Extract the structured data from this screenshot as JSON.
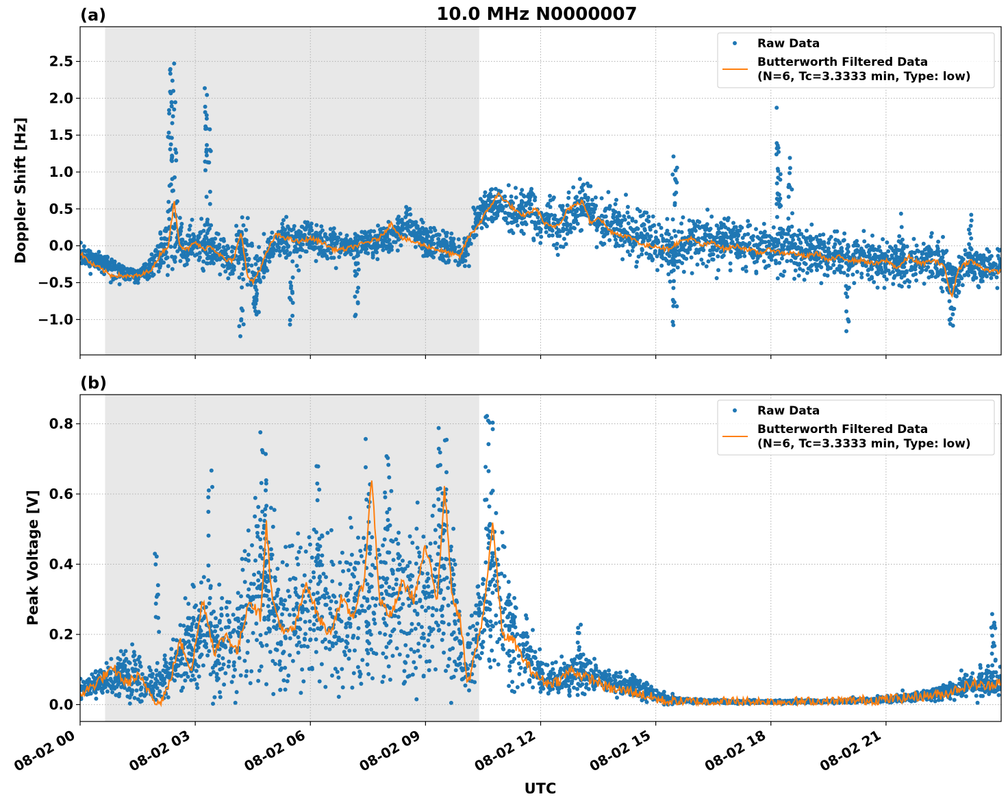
{
  "figure": {
    "title": "10.0 MHz N0000007",
    "xlabel": "UTC",
    "shading_color": "#e8e8e8",
    "raw_color": "#1f77b4",
    "filtered_color": "#ff7f0e"
  },
  "chart_data": [
    {
      "panel": "(a)",
      "type": "scatter",
      "title": "10.0 MHz N0000007",
      "ylabel": "Doppler Shift [Hz]",
      "xlabel": "",
      "xlim": [
        0,
        24
      ],
      "ylim": [
        -1.48,
        2.97
      ],
      "yticks": [
        -1.0,
        -0.5,
        0.0,
        0.5,
        1.0,
        1.5,
        2.0,
        2.5
      ],
      "ytick_labels": [
        "−1.0",
        "−0.5",
        "0.0",
        "0.5",
        "1.0",
        "1.5",
        "2.0",
        "2.5"
      ],
      "xticks": [
        0,
        3,
        6,
        9,
        12,
        15,
        18,
        21
      ],
      "grid": true,
      "legend_position": "upper-right",
      "shaded_span_hours": [
        0.65,
        10.4
      ],
      "series": [
        {
          "name": "Raw Data",
          "kind": "points",
          "color": "#1f77b4",
          "x": [
            0,
            0.5,
            1,
            1.5,
            1.8,
            2,
            2.25,
            2.4,
            2.5,
            2.75,
            3,
            3.25,
            3.5,
            3.75,
            4,
            4.25,
            4.5,
            4.75,
            5,
            5.5,
            6,
            6.5,
            7,
            7.5,
            8,
            8.5,
            9,
            9.5,
            10,
            10.25,
            10.5,
            10.75,
            11,
            11.25,
            11.5,
            11.75,
            12,
            12.25,
            12.5,
            12.75,
            13,
            13.25,
            13.5,
            14,
            14.5,
            15,
            15.5,
            16,
            16.5,
            17,
            17.5,
            18,
            18.5,
            19,
            19.5,
            20,
            20.5,
            21,
            21.5,
            22,
            22.5,
            22.75,
            23,
            23.5,
            24
          ],
          "y": [
            -0.12,
            -0.2,
            -0.35,
            -0.42,
            -0.3,
            -0.18,
            0.0,
            0.35,
            0.1,
            -0.08,
            0.05,
            0.0,
            -0.05,
            -0.15,
            -0.25,
            0.15,
            -0.45,
            -0.3,
            0.05,
            0.05,
            0.1,
            -0.02,
            -0.02,
            0.02,
            0.1,
            0.3,
            0.05,
            -0.02,
            -0.15,
            0.25,
            0.45,
            0.6,
            0.5,
            0.45,
            0.48,
            0.5,
            0.35,
            0.3,
            0.25,
            0.4,
            0.5,
            0.55,
            0.3,
            0.25,
            0.12,
            0.05,
            -0.05,
            0.1,
            0.05,
            0.1,
            -0.02,
            -0.05,
            -0.05,
            -0.08,
            -0.12,
            -0.15,
            -0.2,
            -0.2,
            -0.25,
            -0.22,
            -0.25,
            -0.55,
            -0.25,
            -0.28,
            -0.32
          ],
          "spread": [
            0.12,
            0.13,
            0.12,
            0.1,
            0.15,
            0.2,
            0.35,
            0.9,
            0.35,
            0.3,
            0.3,
            0.35,
            0.3,
            0.3,
            0.35,
            0.3,
            0.35,
            0.3,
            0.28,
            0.25,
            0.22,
            0.22,
            0.2,
            0.2,
            0.2,
            0.25,
            0.2,
            0.2,
            0.2,
            0.25,
            0.25,
            0.25,
            0.25,
            0.28,
            0.3,
            0.3,
            0.3,
            0.3,
            0.3,
            0.32,
            0.33,
            0.33,
            0.3,
            0.28,
            0.28,
            0.3,
            0.32,
            0.3,
            0.3,
            0.3,
            0.3,
            0.32,
            0.33,
            0.32,
            0.3,
            0.3,
            0.28,
            0.28,
            0.28,
            0.28,
            0.28,
            0.3,
            0.28,
            0.25,
            0.25
          ],
          "spikes": [
            [
              2.4,
              2.75
            ],
            [
              2.45,
              2.6
            ],
            [
              2.35,
              2.2
            ],
            [
              3.3,
              2.25
            ],
            [
              3.35,
              1.9
            ],
            [
              4.2,
              -1.25
            ],
            [
              4.6,
              -1.1
            ],
            [
              5.5,
              -1.1
            ],
            [
              7.2,
              -1.0
            ],
            [
              15.5,
              1.27
            ],
            [
              15.5,
              -1.1
            ],
            [
              18.2,
              1.9
            ],
            [
              18.2,
              1.5
            ],
            [
              18.5,
              1.2
            ],
            [
              20.0,
              -1.27
            ],
            [
              22.7,
              -1.2
            ],
            [
              21.4,
              0.6
            ],
            [
              23.2,
              0.45
            ]
          ]
        },
        {
          "name": "Butterworth Filtered Data\n(N=6, Tc=3.3333 min, Type: low)",
          "kind": "line",
          "color": "#ff7f0e",
          "x": [
            0,
            0.3,
            0.5,
            0.8,
            1,
            1.3,
            1.6,
            1.9,
            2.1,
            2.3,
            2.45,
            2.6,
            2.8,
            3,
            3.2,
            3.4,
            3.6,
            3.8,
            4,
            4.2,
            4.35,
            4.5,
            4.7,
            4.9,
            5.1,
            5.4,
            5.7,
            6,
            6.3,
            6.6,
            6.9,
            7.2,
            7.5,
            7.8,
            8.1,
            8.4,
            8.7,
            9,
            9.3,
            9.6,
            9.9,
            10.1,
            10.4,
            10.7,
            10.9,
            11.1,
            11.3,
            11.5,
            11.7,
            11.9,
            12.1,
            12.3,
            12.5,
            12.7,
            12.9,
            13.1,
            13.3,
            13.5,
            13.8,
            14.1,
            14.4,
            14.7,
            15,
            15.3,
            15.6,
            15.9,
            16.2,
            16.5,
            16.8,
            17.1,
            17.4,
            17.7,
            18,
            18.3,
            18.6,
            18.9,
            19.2,
            19.5,
            19.8,
            20.1,
            20.4,
            20.7,
            21,
            21.3,
            21.6,
            21.9,
            22.2,
            22.5,
            22.7,
            22.9,
            23.2,
            23.5,
            23.8,
            24
          ],
          "y": [
            -0.1,
            -0.25,
            -0.3,
            -0.4,
            -0.4,
            -0.42,
            -0.4,
            -0.3,
            -0.1,
            0.0,
            0.6,
            0.0,
            -0.05,
            0.05,
            -0.05,
            0.0,
            -0.1,
            -0.2,
            -0.2,
            0.2,
            -0.4,
            -0.5,
            -0.3,
            -0.05,
            0.15,
            0.1,
            0.05,
            0.1,
            0.05,
            -0.05,
            -0.05,
            0.0,
            0.05,
            0.1,
            0.3,
            0.1,
            0.05,
            0.0,
            -0.05,
            -0.1,
            -0.15,
            0.1,
            0.3,
            0.55,
            0.7,
            0.6,
            0.5,
            0.4,
            0.45,
            0.5,
            0.3,
            0.25,
            0.3,
            0.5,
            0.55,
            0.6,
            0.3,
            0.4,
            0.2,
            0.15,
            0.1,
            0.0,
            0.0,
            -0.05,
            0.05,
            0.1,
            0.0,
            0.05,
            -0.05,
            0.0,
            -0.05,
            -0.1,
            -0.05,
            -0.1,
            -0.1,
            -0.15,
            -0.1,
            -0.2,
            -0.15,
            -0.2,
            -0.2,
            -0.25,
            -0.2,
            -0.3,
            -0.15,
            -0.25,
            -0.2,
            -0.25,
            -0.7,
            -0.3,
            -0.2,
            -0.3,
            -0.35,
            -0.35
          ]
        }
      ]
    },
    {
      "panel": "(b)",
      "type": "scatter",
      "title": "",
      "ylabel": "Peak Voltage [V]",
      "xlabel": "UTC",
      "xlim": [
        0,
        24
      ],
      "ylim": [
        -0.048,
        0.883
      ],
      "yticks": [
        0.0,
        0.2,
        0.4,
        0.6,
        0.8
      ],
      "ytick_labels": [
        "0.0",
        "0.2",
        "0.4",
        "0.6",
        "0.8"
      ],
      "xticks": [
        0,
        3,
        6,
        9,
        12,
        15,
        18,
        21
      ],
      "xtick_labels": [
        "08-02 00",
        "08-02 03",
        "08-02 06",
        "08-02 09",
        "08-02 12",
        "08-02 15",
        "08-02 18",
        "08-02 21"
      ],
      "grid": true,
      "legend_position": "upper-right",
      "shaded_span_hours": [
        0.65,
        10.4
      ],
      "series": [
        {
          "name": "Raw Data",
          "kind": "points",
          "color": "#1f77b4",
          "x": [
            0,
            0.5,
            1,
            1.3,
            1.6,
            2,
            2.3,
            2.7,
            3,
            3.3,
            3.6,
            4,
            4.3,
            4.6,
            4.9,
            5.2,
            5.5,
            5.8,
            6.1,
            6.4,
            6.7,
            7,
            7.3,
            7.6,
            7.9,
            8.2,
            8.5,
            8.8,
            9.1,
            9.4,
            9.7,
            10,
            10.3,
            10.6,
            10.9,
            11.2,
            11.5,
            11.8,
            12.1,
            12.4,
            12.7,
            13,
            13.3,
            13.6,
            14,
            14.4,
            14.8,
            15.2,
            15.6,
            16,
            17,
            18,
            19,
            20,
            21,
            21.5,
            22,
            22.5,
            23,
            23.5,
            24
          ],
          "y": [
            0.05,
            0.06,
            0.07,
            0.1,
            0.06,
            0.05,
            0.08,
            0.15,
            0.18,
            0.2,
            0.17,
            0.2,
            0.25,
            0.3,
            0.35,
            0.2,
            0.3,
            0.25,
            0.28,
            0.3,
            0.22,
            0.28,
            0.3,
            0.32,
            0.28,
            0.3,
            0.27,
            0.3,
            0.32,
            0.35,
            0.3,
            0.08,
            0.2,
            0.28,
            0.35,
            0.2,
            0.18,
            0.12,
            0.08,
            0.07,
            0.08,
            0.09,
            0.08,
            0.07,
            0.06,
            0.05,
            0.04,
            0.02,
            0.012,
            0.01,
            0.008,
            0.008,
            0.008,
            0.01,
            0.015,
            0.02,
            0.025,
            0.035,
            0.05,
            0.06,
            0.07
          ],
          "spread": [
            0.03,
            0.04,
            0.05,
            0.08,
            0.05,
            0.05,
            0.07,
            0.1,
            0.12,
            0.15,
            0.14,
            0.18,
            0.22,
            0.25,
            0.25,
            0.2,
            0.22,
            0.22,
            0.22,
            0.22,
            0.2,
            0.22,
            0.22,
            0.24,
            0.22,
            0.22,
            0.22,
            0.22,
            0.24,
            0.26,
            0.24,
            0.05,
            0.12,
            0.2,
            0.22,
            0.15,
            0.1,
            0.07,
            0.05,
            0.04,
            0.05,
            0.06,
            0.05,
            0.04,
            0.03,
            0.03,
            0.025,
            0.015,
            0.008,
            0.005,
            0.004,
            0.004,
            0.004,
            0.005,
            0.008,
            0.01,
            0.012,
            0.02,
            0.03,
            0.04,
            0.04
          ],
          "spikes": [
            [
              2.0,
              0.44
            ],
            [
              4.75,
              0.82
            ],
            [
              4.8,
              0.8
            ],
            [
              9.5,
              0.82
            ],
            [
              9.35,
              0.8
            ],
            [
              10.6,
              0.84
            ],
            [
              10.7,
              0.82
            ],
            [
              7.5,
              0.76
            ],
            [
              8.0,
              0.72
            ],
            [
              3.4,
              0.67
            ],
            [
              6.2,
              0.68
            ],
            [
              23.8,
              0.26
            ],
            [
              13.0,
              0.24
            ]
          ]
        },
        {
          "name": "Butterworth Filtered Data\n(N=6, Tc=3.3333 min, Type: low)",
          "kind": "line",
          "color": "#ff7f0e",
          "x": [
            0,
            0.3,
            0.6,
            0.9,
            1.2,
            1.5,
            1.8,
            2.05,
            2.3,
            2.6,
            2.9,
            3.2,
            3.5,
            3.8,
            4.1,
            4.4,
            4.7,
            4.85,
            5.0,
            5.3,
            5.6,
            5.9,
            6.2,
            6.5,
            6.8,
            7.1,
            7.4,
            7.6,
            7.8,
            8.1,
            8.4,
            8.7,
            9.0,
            9.3,
            9.5,
            9.7,
            9.9,
            10.1,
            10.3,
            10.5,
            10.75,
            11.0,
            11.3,
            11.6,
            11.9,
            12.2,
            12.5,
            12.8,
            13.1,
            13.4,
            13.7,
            14.0,
            14.3,
            14.6,
            14.9,
            15.2,
            15.5,
            16,
            17,
            18,
            19,
            20,
            21,
            21.5,
            22,
            22.5,
            23,
            23.3,
            23.6,
            24
          ],
          "y": [
            0.03,
            0.05,
            0.08,
            0.1,
            0.06,
            0.08,
            0.04,
            0.0,
            0.05,
            0.18,
            0.1,
            0.3,
            0.15,
            0.2,
            0.15,
            0.3,
            0.25,
            0.52,
            0.3,
            0.2,
            0.22,
            0.35,
            0.25,
            0.2,
            0.3,
            0.25,
            0.35,
            0.65,
            0.3,
            0.25,
            0.35,
            0.3,
            0.45,
            0.3,
            0.62,
            0.3,
            0.25,
            0.05,
            0.15,
            0.25,
            0.52,
            0.2,
            0.18,
            0.12,
            0.08,
            0.06,
            0.07,
            0.1,
            0.08,
            0.07,
            0.05,
            0.04,
            0.04,
            0.03,
            0.02,
            0.01,
            0.008,
            0.008,
            0.008,
            0.008,
            0.008,
            0.01,
            0.015,
            0.02,
            0.025,
            0.03,
            0.05,
            0.06,
            0.05,
            0.07
          ]
        }
      ]
    }
  ]
}
